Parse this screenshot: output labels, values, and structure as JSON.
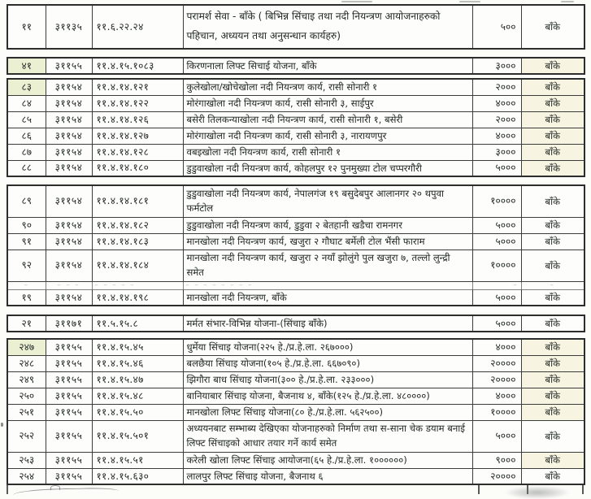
{
  "document": {
    "type": "scanned-budget-table",
    "district": "बाँके",
    "accent_highlight_green": "#ebf0d3",
    "accent_highlight_cream": "#f7f4e2"
  },
  "blocks": [
    {
      "rows": [
        {
          "sn": "११",
          "code": "३११३५",
          "budget": "११.६.२२.२४",
          "desc": "परामर्श सेवा - बाँके ( बिभिन्न सिंचाइ तथा नदी नियन्त्रण आयोजनाहरुको पहिचान, अध्ययन तथा अनुसन्धान कार्यहरु)",
          "amount": "५००",
          "district": "बाँके",
          "two": true
        }
      ]
    },
    {
      "rows": [
        {
          "sn": "४१",
          "code": "३११५५",
          "budget": "११.४.१५.१०८३",
          "desc": "किरणनाला लिफ्ट सिचाई योजना, बाँके",
          "amount": "३०००",
          "district": "बाँके",
          "hl_sn": true,
          "hl_district": true
        }
      ]
    },
    {
      "rows": [
        {
          "sn": "८३",
          "code": "३११५४",
          "budget": "११.४.१४.१२१",
          "desc": "कुलेखोला/खोचेखोला नदी नियन्त्रण कार्य, रासी सोनारी १",
          "amount": "२०००",
          "district": "बाँके",
          "hl_sn": true,
          "hl_district": true
        },
        {
          "sn": "८४",
          "code": "३११५४",
          "budget": "११.४.१४.१२२",
          "desc": "मोरंगाखोला नदी नियन्त्रण कार्य, रासी सोनारी ३, साईपुर",
          "amount": "४०००",
          "district": "बाँके",
          "hl_district": true
        },
        {
          "sn": "८५",
          "code": "३११५४",
          "budget": "११.४.१४.१२६",
          "desc": "बसेरी तिलकन्याखोला नदी नियन्त्रण कार्य, रासी सोनारी १, बसेरी",
          "amount": "२०००",
          "district": "बाँके",
          "hl_district": true
        },
        {
          "sn": "८६",
          "code": "३११५४",
          "budget": "११.४.१४.१२७",
          "desc": "मोरंगाखोला नदी नियन्त्रण कार्य, रासी सोनारी ३, नारायणपुर",
          "amount": "४०००",
          "district": "बाँके",
          "hl_district": true
        },
        {
          "sn": "८७",
          "code": "३११५४",
          "budget": "११.४.१४.१२८",
          "desc": "वबइखोला नदी नियन्त्रण कार्य, रासी सोनारी १",
          "amount": "३०००",
          "district": "बाँके",
          "hl_district": true
        },
        {
          "sn": "८८",
          "code": "३११५४",
          "budget": "११.४.१४.१८०",
          "desc": "डुडुवाखोला नदी नियन्त्रण कार्य, कोहलपुर १२ पुनमुख्या टोल चप्परगौरी",
          "amount": "५०००",
          "district": "बाँके",
          "hl_district": true
        }
      ]
    },
    {
      "rows": [
        {
          "sn": "८९",
          "code": "३११५४",
          "budget": "११.४.१४.१८१",
          "desc": "डुडुवाखोला नदी नियन्त्रण कार्य, नेपालगंज १९ बसुदेबपुर आलानगर २० थपुवा फर्मटोल",
          "amount": "१००००",
          "district": "बाँके",
          "two": true
        },
        {
          "sn": "९०",
          "code": "३११५४",
          "budget": "११.४.१४.१८२",
          "desc": "डुडुवाखोला नदी नियन्त्रण कार्य, डुडुवा २ बेतहानी खडैचा रामनगर",
          "amount": "५०००",
          "district": "बाँके"
        },
        {
          "sn": "९१",
          "code": "३११५४",
          "budget": "११.४.१४.१८३",
          "desc": "मानखोला नदी नियन्त्रण कार्य, खजुरा २ गौघाट बर्मेली टोल भैंसी फाराम",
          "amount": "५०००",
          "district": "बाँके"
        },
        {
          "sn": "९२",
          "code": "३११५४",
          "budget": "११.४.१४.१८४",
          "desc": "मानखोला नदी नियन्त्रण कार्य, खजुरा २ नयाँ झोलुंगे पुल खजुरा ७, तल्लो लुन्द्री समेत",
          "amount": "१००००",
          "district": "बाँके",
          "two": true
        },
        {
          "sn": "–",
          "code": "– – –",
          "budget": "– – – – –",
          "desc": "– –  – – –   –  – –",
          "amount": "–",
          "district": "–",
          "faded": true
        },
        {
          "sn": "१९",
          "code": "३११५४",
          "budget": "११.४.१४.१९८",
          "desc": "मानखोला नदी नियन्त्रण, बाँके",
          "amount": "५०००",
          "district": "बाँके"
        }
      ]
    },
    {
      "rows": [
        {
          "sn": "२१",
          "code": "३११७१",
          "budget": "११.५.१५.८",
          "desc": "मर्मत संभार-विभिन्न योजना-(सिंचाइ बाँके)",
          "amount": "५०००",
          "district": "बाँके"
        }
      ]
    },
    {
      "rows": [
        {
          "sn": "२४७",
          "code": "३११५५",
          "budget": "११.४.१५.४५",
          "desc": "धुर्मेया सिंचाइ योजना(२२५ हे./प्र.हे.ला. २६७०००)",
          "amount": "४०००",
          "district": "बाँके",
          "hl_sn": true,
          "hl_district": true
        },
        {
          "sn": "२४८",
          "code": "३११५५",
          "budget": "११.४.१५.४६",
          "desc": "बलछैया सिंचाइ योजना(१०५ हे./प्र.हे.ला. ६६७०९०)",
          "amount": "२००००",
          "district": "बाँके",
          "hl_district": true
        },
        {
          "sn": "२४९",
          "code": "३११५५",
          "budget": "११.४.१५.४७",
          "desc": "झिगौरा बाध सिंचाइ योजना(३०० हे./प्र.हे.ला. २३३०००)",
          "amount": "२००००",
          "district": "बाँके",
          "hl_district": true
        },
        {
          "sn": "२५०",
          "code": "३११५५",
          "budget": "११.४.१५.४८",
          "desc": "बानियाबार सिंचाइ योजना, बैजनाथ ४, बाँके(१२५ हे./प्र.हे.ला. ४८००००)",
          "amount": "४०००",
          "district": "बाँके",
          "hl_district": true
        },
        {
          "sn": "२५१",
          "code": "३११५५",
          "budget": "११.४.१५.५०",
          "desc": "मानखोला लिफ्ट सिंचाइ योजना(८० हे./प्र.हे.ला. ५६२५००)",
          "amount": "१००००",
          "district": "बाँके",
          "hl_district": true
        },
        {
          "sn": "२५२",
          "code": "३११५५",
          "budget": "११.४.१५.५०१",
          "desc": "अध्ययनबाट सम्भाब्य देखिएका योजनाहरुको निर्माण तथा स-साना चेक डयाम बनाई लिफ्ट सिंचाइको आधार तयार गर्ने कार्य समेत",
          "amount": "५०००",
          "district": "बाँके",
          "two": true
        },
        {
          "sn": "२५३",
          "code": "३११५५",
          "budget": "११.४.१५.५१",
          "desc": "करेली खोला लिफ्ट सिंचाइ आयोजना(६५ हे./प्र.हे.ला. १००००००)",
          "amount": "९०००",
          "district": "बाँके",
          "hl_district": true
        },
        {
          "sn": "२५४",
          "code": "३११५५",
          "budget": "११.४.१५.६३०",
          "desc": "लालपुर लिफ्ट सिंचाइ योजना, बैजनाथ ६",
          "amount": "२००००",
          "district": "बाँके"
        }
      ]
    }
  ]
}
